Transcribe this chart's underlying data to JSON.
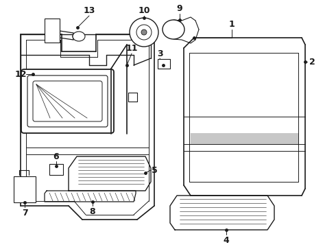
{
  "bg_color": "#ffffff",
  "line_color": "#1a1a1a",
  "label_fontsize": 9,
  "figsize": [
    4.9,
    3.6
  ],
  "dpi": 100,
  "xlim": [
    0,
    490
  ],
  "ylim": [
    0,
    360
  ]
}
